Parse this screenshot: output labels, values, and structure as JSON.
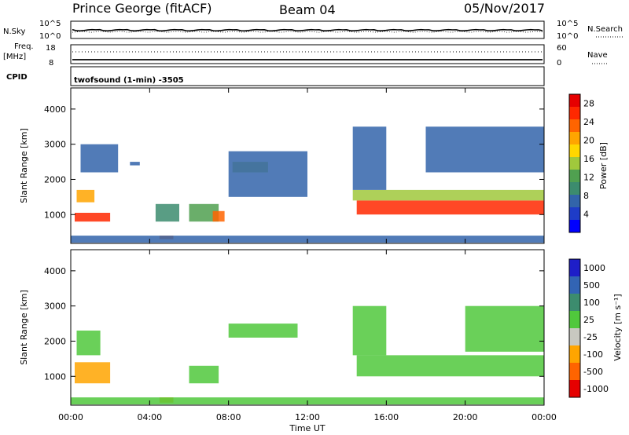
{
  "header": {
    "station": "Prince George (fitACF)",
    "beam": "Beam 04",
    "date": "05/Nov/2017"
  },
  "aux_panels": {
    "nsky_label": "N.Sky",
    "nsky_ticks": [
      "10^5",
      "10^0"
    ],
    "nsearch_label": "N.Search",
    "nsearch_ticks": [
      "10^5",
      "10^0"
    ],
    "freq_label_line1": "Freq.",
    "freq_label_line2": "[MHz]",
    "freq_ticks": [
      "18",
      "8"
    ],
    "nave_label": "Nave",
    "nave_ticks": [
      "60",
      "0"
    ],
    "cpid_label": "CPID",
    "cpid_text": "twofsound (1-min) -3505"
  },
  "chart_data": [
    {
      "type": "heatmap",
      "title": "",
      "ylabel": "Slant Range [km]",
      "xlabel": "",
      "ylim": [
        180,
        4600
      ],
      "y_ticks": [
        "1000",
        "2000",
        "3000",
        "4000"
      ],
      "x_ticks": [
        "00:00",
        "04:00",
        "08:00",
        "12:00",
        "16:00",
        "20:00",
        "00:00"
      ],
      "xlim_hours": [
        0,
        24
      ],
      "colorbar": {
        "label": "Power [dB]",
        "ticks": [
          "4",
          "8",
          "12",
          "16",
          "20",
          "24",
          "28"
        ],
        "range": [
          0,
          30
        ],
        "colors": [
          "#0000ff",
          "#1e3cc8",
          "#3264aa",
          "#3c8c6e",
          "#50a050",
          "#a0c83c",
          "#ffd700",
          "#ffa500",
          "#ff6400",
          "#ff2800",
          "#e60000"
        ]
      },
      "regions": [
        {
          "t": [
            0.2,
            2.0
          ],
          "r": [
            800,
            1050
          ],
          "value": 26
        },
        {
          "t": [
            0.3,
            1.2
          ],
          "r": [
            1350,
            1700
          ],
          "value": 20
        },
        {
          "t": [
            0.5,
            2.4
          ],
          "r": [
            2200,
            3000
          ],
          "value": 6
        },
        {
          "t": [
            3.0,
            3.5
          ],
          "r": [
            2400,
            2500
          ],
          "value": 8
        },
        {
          "t": [
            4.5,
            5.2
          ],
          "r": [
            300,
            400
          ],
          "value": 22
        },
        {
          "t": [
            4.3,
            5.5
          ],
          "r": [
            800,
            1300
          ],
          "value": 10
        },
        {
          "t": [
            6.0,
            7.5
          ],
          "r": [
            800,
            1300
          ],
          "value": 12
        },
        {
          "t": [
            7.2,
            7.8
          ],
          "r": [
            800,
            1100
          ],
          "value": 22
        },
        {
          "t": [
            8.2,
            10.0
          ],
          "r": [
            2200,
            2500
          ],
          "value": 14
        },
        {
          "t": [
            8.0,
            12.0
          ],
          "r": [
            1500,
            2800
          ],
          "value": 6
        },
        {
          "t": [
            0.0,
            24.0
          ],
          "r": [
            200,
            400
          ],
          "value": 8
        },
        {
          "t": [
            14.5,
            24.0
          ],
          "r": [
            1000,
            1400
          ],
          "value": 26
        },
        {
          "t": [
            14.3,
            24.0
          ],
          "r": [
            1400,
            1700
          ],
          "value": 14
        },
        {
          "t": [
            14.3,
            16.0
          ],
          "r": [
            1700,
            3500
          ],
          "value": 8
        },
        {
          "t": [
            18.0,
            24.0
          ],
          "r": [
            2200,
            3500
          ],
          "value": 6
        }
      ]
    },
    {
      "type": "heatmap",
      "title": "",
      "ylabel": "Slant Range [km]",
      "xlabel": "Time UT",
      "ylim": [
        180,
        4600
      ],
      "y_ticks": [
        "1000",
        "2000",
        "3000",
        "4000"
      ],
      "x_ticks": [
        "00:00",
        "04:00",
        "08:00",
        "12:00",
        "16:00",
        "20:00",
        "00:00"
      ],
      "xlim_hours": [
        0,
        24
      ],
      "colorbar": {
        "label": "Velocity [m s⁻¹]",
        "ticks": [
          "1000",
          "500",
          "100",
          "25",
          "-25",
          "-100",
          "-500",
          "-1000"
        ],
        "colors": [
          "#1e1ec8",
          "#3264b4",
          "#3c8c6e",
          "#50c83c",
          "#c8c8c0",
          "#ffa500",
          "#ff6400",
          "#e60000"
        ]
      },
      "regions": [
        {
          "t": [
            0.3,
            1.5
          ],
          "r": [
            1600,
            2300
          ],
          "value": 25
        },
        {
          "t": [
            0.2,
            2.0
          ],
          "r": [
            800,
            1400
          ],
          "value": -100
        },
        {
          "t": [
            4.5,
            5.2
          ],
          "r": [
            250,
            400
          ],
          "value": -100
        },
        {
          "t": [
            6.0,
            7.5
          ],
          "r": [
            800,
            1300
          ],
          "value": 25
        },
        {
          "t": [
            8.0,
            11.5
          ],
          "r": [
            2100,
            2500
          ],
          "value": 25
        },
        {
          "t": [
            0.0,
            24.0
          ],
          "r": [
            200,
            400
          ],
          "value": 25
        },
        {
          "t": [
            14.5,
            24.0
          ],
          "r": [
            1000,
            1600
          ],
          "value": 25
        },
        {
          "t": [
            14.3,
            16.0
          ],
          "r": [
            1600,
            3000
          ],
          "value": 25
        },
        {
          "t": [
            20.0,
            24.0
          ],
          "r": [
            1700,
            3000
          ],
          "value": 25
        }
      ]
    }
  ]
}
